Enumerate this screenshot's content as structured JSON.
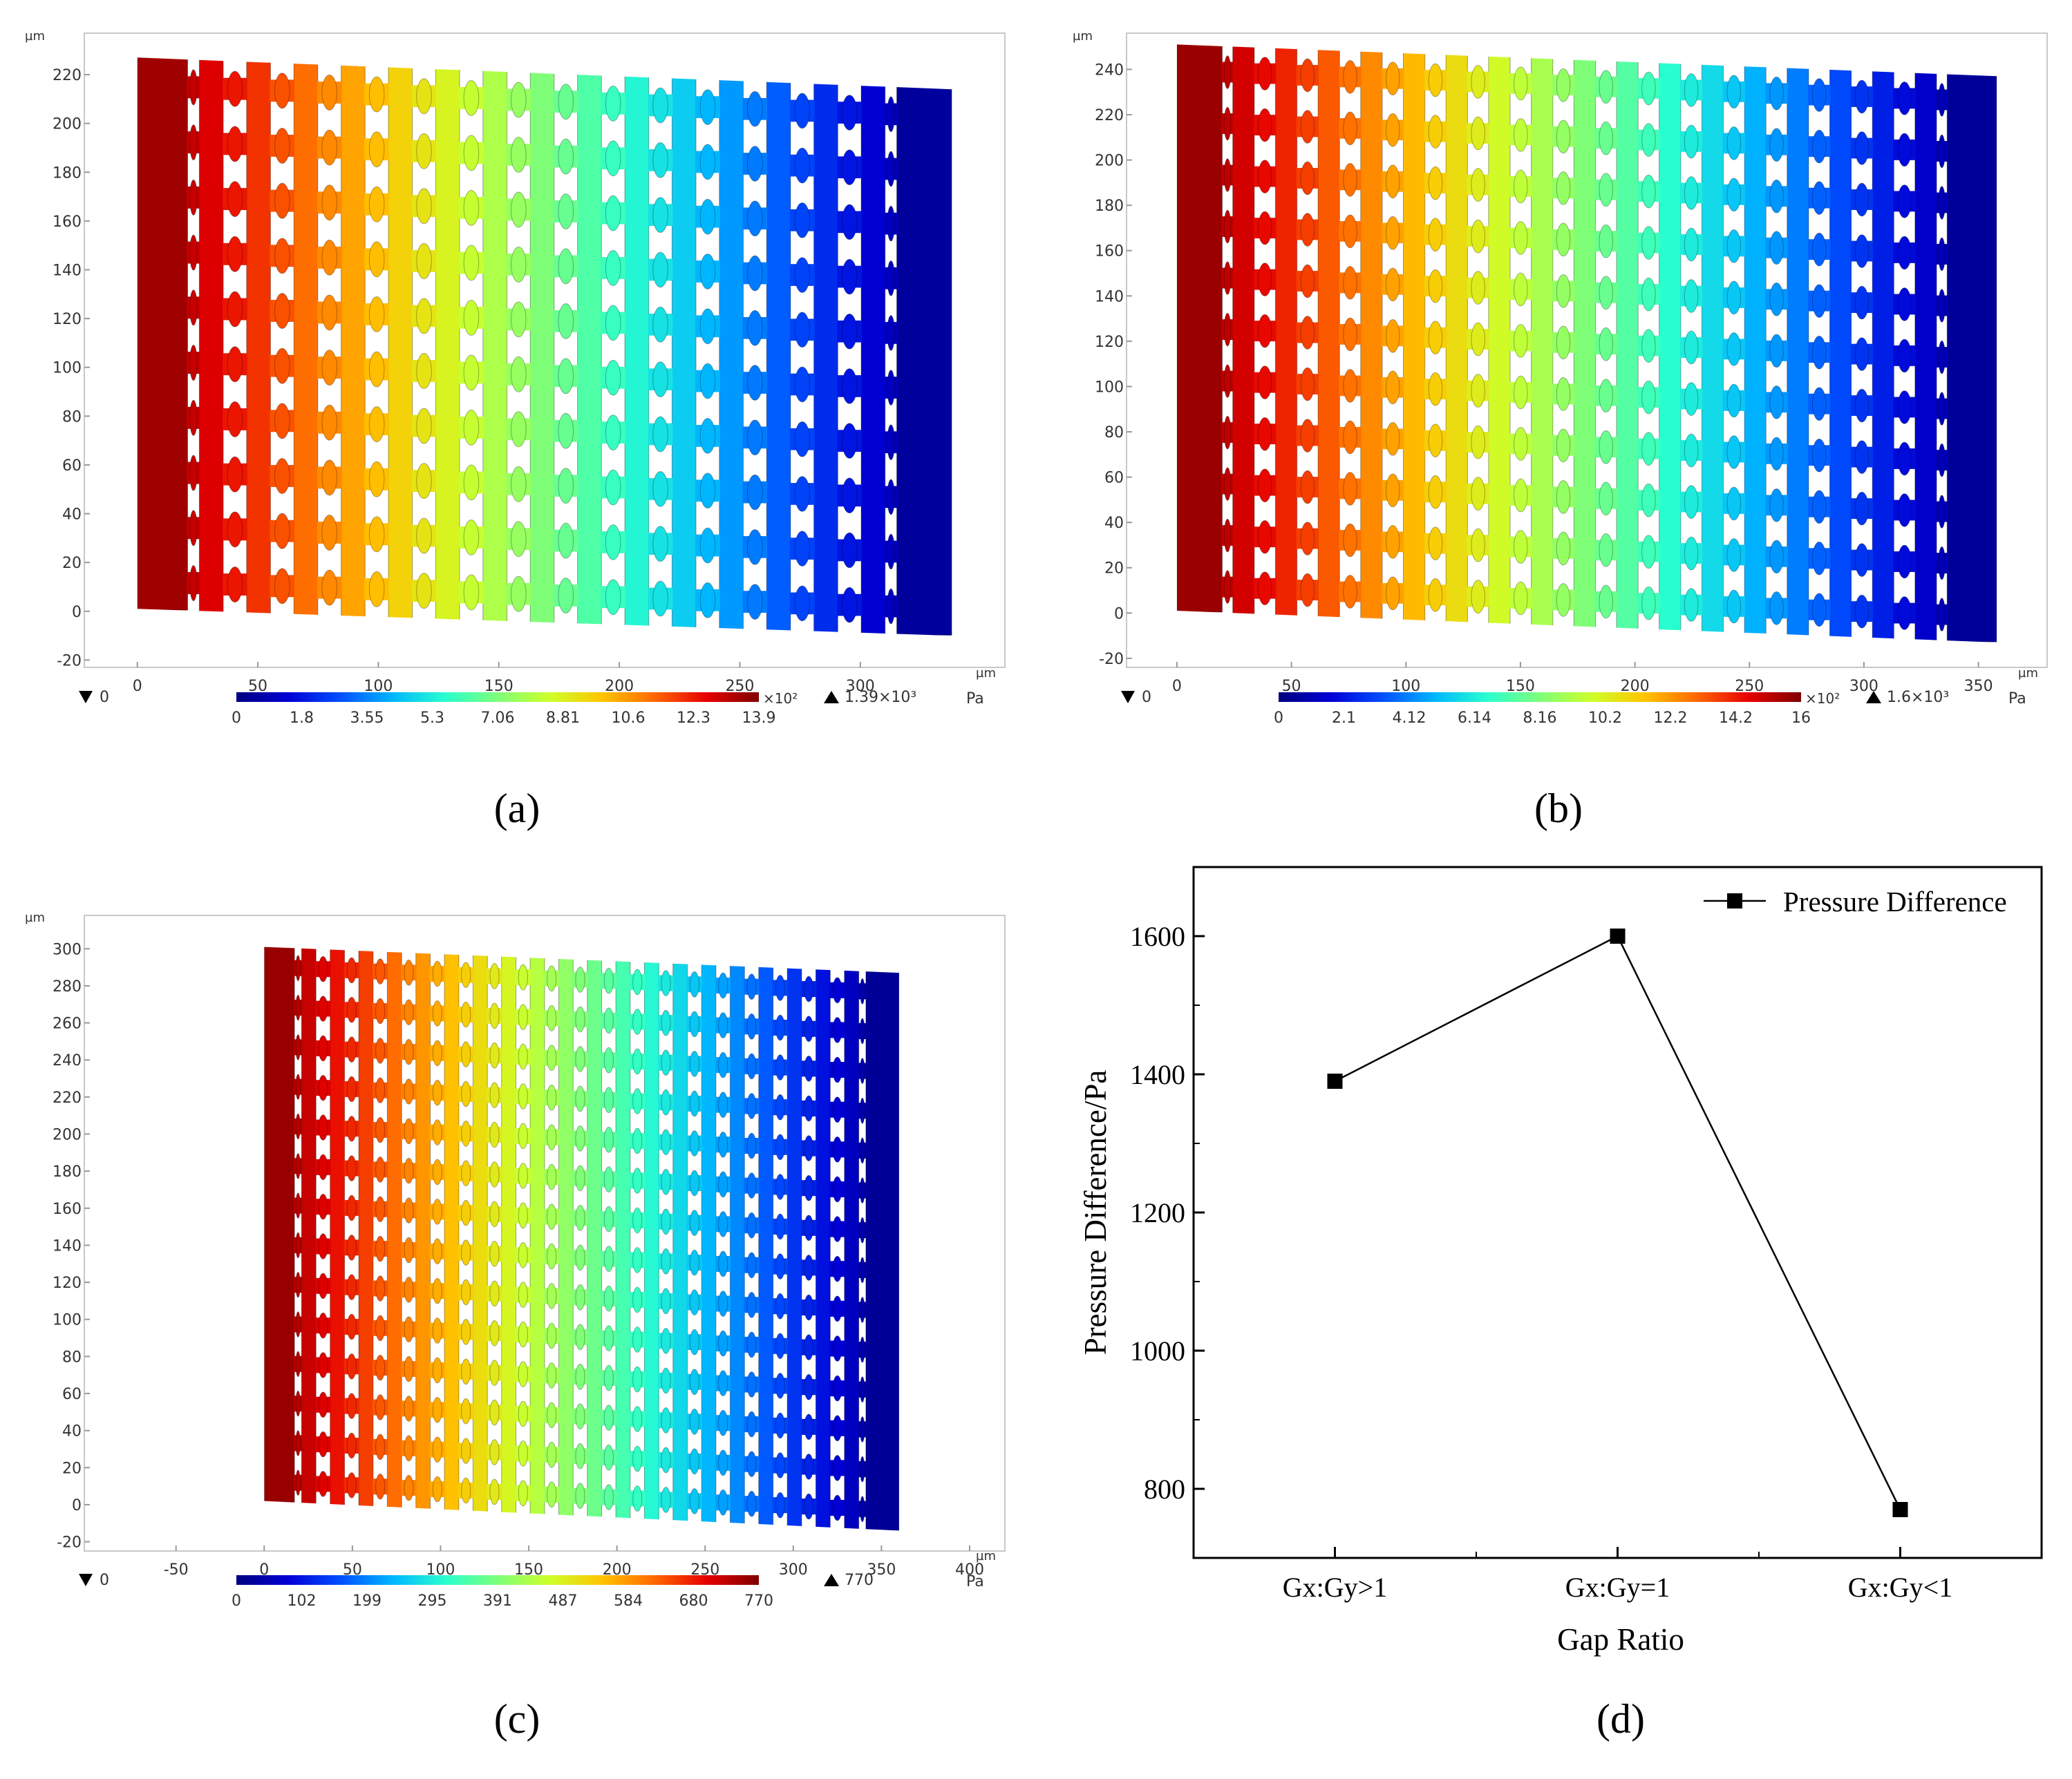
{
  "figure": {
    "panel_labels": [
      "(a)",
      "(b)",
      "(c)",
      "(d)"
    ],
    "unit_um": "µm",
    "unit_pa": "Pa",
    "colormap": [
      "#00007f",
      "#0000d6",
      "#0050ff",
      "#00b7ff",
      "#29ffce",
      "#7dff7a",
      "#ceff29",
      "#ffc400",
      "#ff6800",
      "#e60000",
      "#7f0000"
    ]
  },
  "chart_data": [
    {
      "type": "heatmap",
      "panel": "(a)",
      "x_ticks": [
        "0",
        "50",
        "100",
        "150",
        "200",
        "250",
        "300"
      ],
      "x_tick_values": [
        0,
        50,
        100,
        150,
        200,
        250,
        300
      ],
      "xlim": [
        -22,
        360
      ],
      "y_ticks": [
        "-20",
        "0",
        "20",
        "40",
        "60",
        "80",
        "100",
        "120",
        "140",
        "160",
        "180",
        "200",
        "220"
      ],
      "y_tick_values": [
        -20,
        0,
        20,
        40,
        60,
        80,
        100,
        120,
        140,
        160,
        180,
        200,
        220
      ],
      "ylim": [
        -23,
        237
      ],
      "structure": {
        "x_start": 0,
        "x_end": 338,
        "pillar_columns": 17,
        "bulb_rows": 10,
        "top_left": 227,
        "top_right": 214,
        "bottom_left": 1,
        "bottom_right": -10
      },
      "colorbar": {
        "min_label": "0",
        "max_label": "1.39×10³",
        "multiplier": "×10²",
        "ticks": [
          "0",
          "1.8",
          "3.55",
          "5.3",
          "7.06",
          "8.81",
          "10.6",
          "12.3",
          "13.9"
        ],
        "range": [
          0,
          13.9
        ],
        "min": 0,
        "max": 1390
      }
    },
    {
      "type": "heatmap",
      "panel": "(b)",
      "x_ticks": [
        "0",
        "50",
        "100",
        "150",
        "200",
        "250",
        "300",
        "350"
      ],
      "x_tick_values": [
        0,
        50,
        100,
        150,
        200,
        250,
        300,
        350
      ],
      "xlim": [
        -22,
        380
      ],
      "y_ticks": [
        "-20",
        "0",
        "20",
        "40",
        "60",
        "80",
        "100",
        "120",
        "140",
        "160",
        "180",
        "200",
        "220",
        "240"
      ],
      "y_tick_values": [
        -20,
        0,
        20,
        40,
        60,
        80,
        100,
        120,
        140,
        160,
        180,
        200,
        220,
        240
      ],
      "ylim": [
        -24,
        256
      ],
      "structure": {
        "x_start": 0,
        "x_end": 358,
        "pillar_columns": 19,
        "bulb_rows": 11,
        "top_left": 251,
        "top_right": 237,
        "bottom_left": 1,
        "bottom_right": -13
      },
      "colorbar": {
        "min_label": "0",
        "max_label": "1.6×10³",
        "multiplier": "×10²",
        "ticks": [
          "0",
          "2.1",
          "4.12",
          "6.14",
          "8.16",
          "10.2",
          "12.2",
          "14.2",
          "16"
        ],
        "range": [
          0,
          16
        ],
        "min": 0,
        "max": 1600
      }
    },
    {
      "type": "heatmap",
      "panel": "(c)",
      "x_ticks": [
        "-50",
        "0",
        "50",
        "100",
        "150",
        "200",
        "250",
        "300",
        "350",
        "400"
      ],
      "x_tick_values": [
        -50,
        0,
        50,
        100,
        150,
        200,
        250,
        300,
        350,
        400
      ],
      "xlim": [
        -102,
        420
      ],
      "y_ticks": [
        "-20",
        "0",
        "20",
        "40",
        "60",
        "80",
        "100",
        "120",
        "140",
        "160",
        "180",
        "200",
        "220",
        "240",
        "260",
        "280",
        "300"
      ],
      "y_tick_values": [
        -20,
        0,
        20,
        40,
        60,
        80,
        100,
        120,
        140,
        160,
        180,
        200,
        220,
        240,
        260,
        280,
        300
      ],
      "ylim": [
        -25,
        318
      ],
      "structure": {
        "x_start": 0,
        "x_end": 360,
        "pillar_columns": 22,
        "bulb_rows": 14,
        "top_left": 301,
        "top_right": 287,
        "bottom_left": 2,
        "bottom_right": -14
      },
      "colorbar": {
        "min_label": "0",
        "max_label": "770",
        "multiplier": "",
        "ticks": [
          "0",
          "102",
          "199",
          "295",
          "391",
          "487",
          "584",
          "680",
          "770"
        ],
        "range": [
          0,
          770
        ],
        "min": 0,
        "max": 770
      }
    },
    {
      "type": "line",
      "panel": "(d)",
      "categories": [
        "Gx:Gy>1",
        "Gx:Gy=1",
        "Gx:Gy<1"
      ],
      "series": [
        {
          "name": "Pressure Difference",
          "values": [
            1390,
            1600,
            770
          ]
        }
      ],
      "xlabel": "Gap Ratio",
      "ylabel": "Pressure Difference/Pa",
      "ylim": [
        700,
        1700
      ],
      "y_ticks": [
        800,
        1000,
        1200,
        1400,
        1600
      ],
      "y_minor": [
        700,
        900,
        1100,
        1300,
        1500,
        1700
      ],
      "legend": "top-right"
    }
  ]
}
